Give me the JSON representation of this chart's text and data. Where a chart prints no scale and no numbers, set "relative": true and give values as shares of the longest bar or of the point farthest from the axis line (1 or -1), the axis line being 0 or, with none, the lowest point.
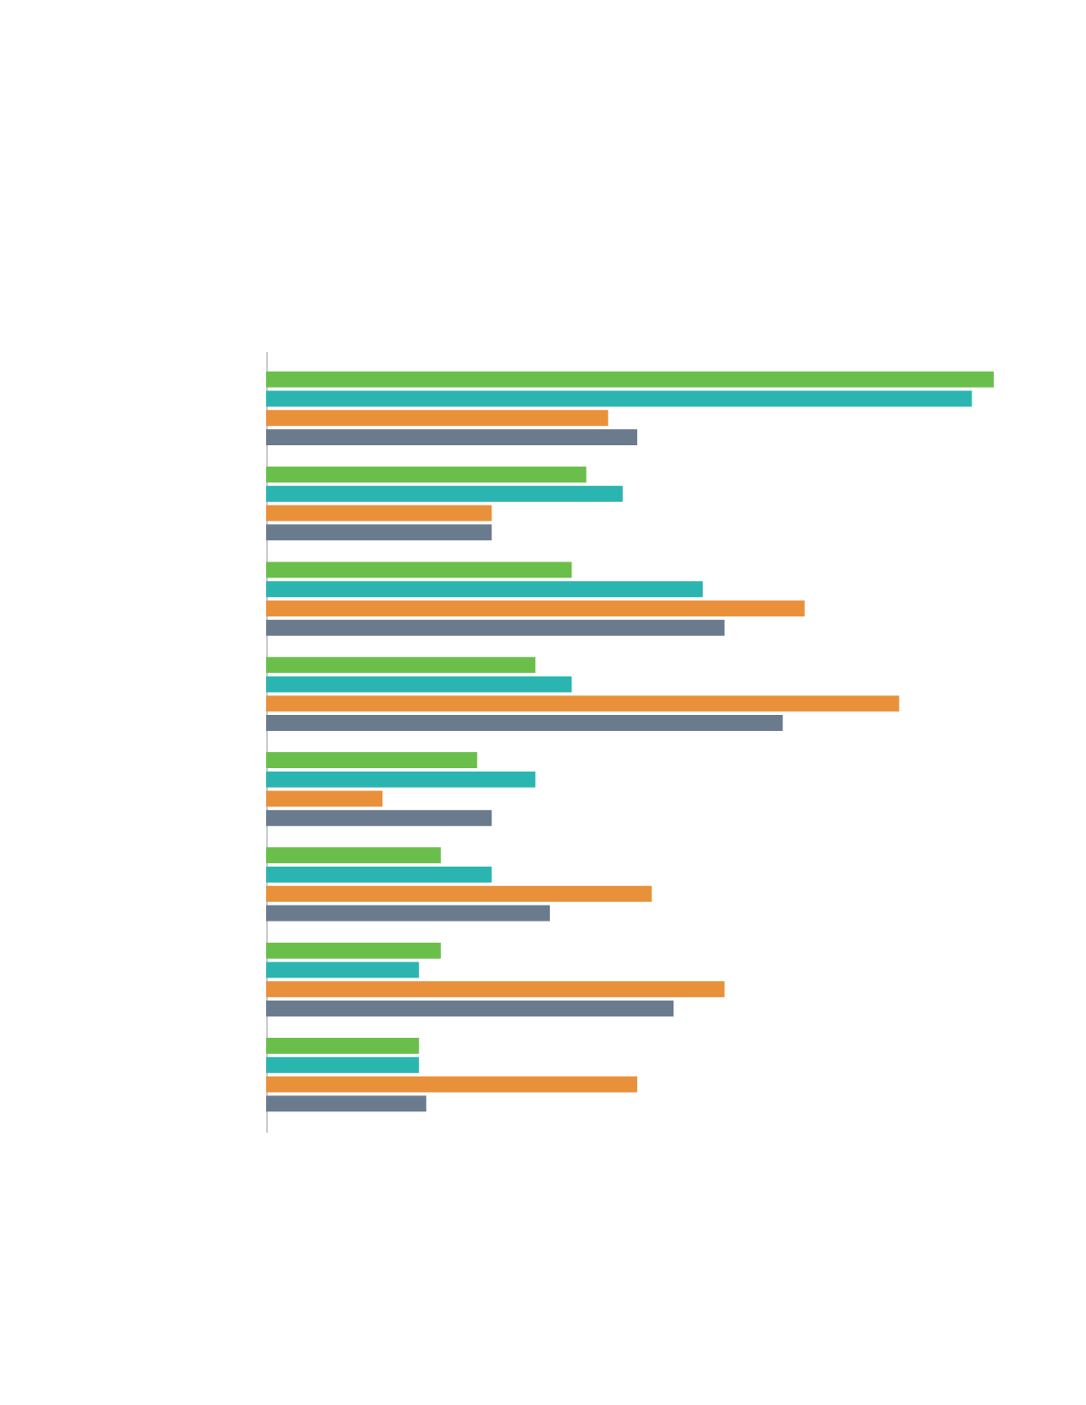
{
  "chart_data": {
    "type": "bar",
    "orientation": "horizontal",
    "relative": true,
    "legend": false,
    "categories": [
      null,
      null,
      null,
      null,
      null,
      null,
      null,
      null
    ],
    "series": [
      {
        "color": "#6abf4b",
        "values": [
          1.0,
          0.44,
          0.42,
          0.37,
          0.29,
          0.24,
          0.24,
          0.21
        ]
      },
      {
        "color": "#2bb5b0",
        "values": [
          0.97,
          0.49,
          0.6,
          0.42,
          0.37,
          0.31,
          0.21,
          0.21
        ]
      },
      {
        "color": "#e8913a",
        "values": [
          0.47,
          0.31,
          0.74,
          0.87,
          0.16,
          0.53,
          0.63,
          0.51
        ]
      },
      {
        "color": "#6b7b8e",
        "values": [
          0.51,
          0.31,
          0.63,
          0.71,
          0.31,
          0.39,
          0.56,
          0.22
        ]
      }
    ]
  }
}
